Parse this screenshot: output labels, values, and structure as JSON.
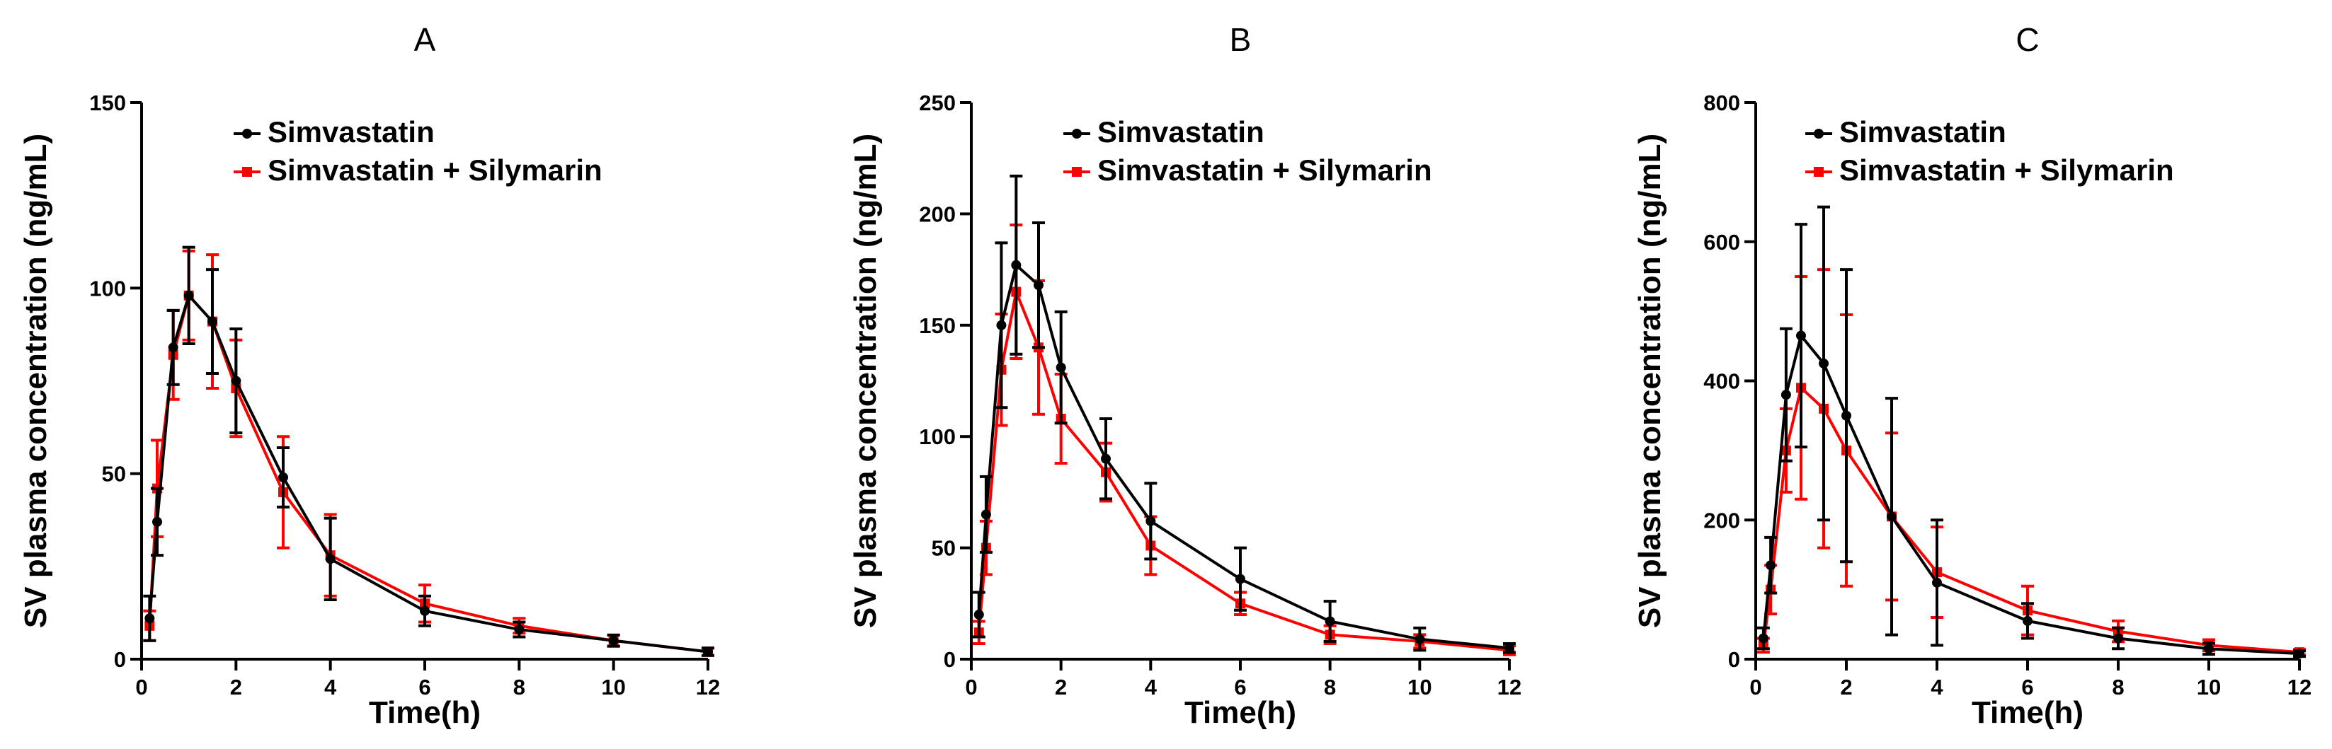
{
  "colors": {
    "simvastatin": "#000000",
    "combination": "#ff0000",
    "axes": "#000000"
  },
  "chart_data": [
    {
      "type": "line",
      "panel": "A",
      "xlabel": "Time(h)",
      "ylabel": "SV plasma concentration (ng/mL)",
      "xlim": [
        0,
        12
      ],
      "ylim": [
        0,
        150
      ],
      "xticks": [
        0,
        2,
        4,
        6,
        8,
        10,
        12
      ],
      "yticks": [
        0,
        50,
        100,
        150
      ],
      "legend_position": "top-center",
      "series": [
        {
          "name": "Simvastatin",
          "color": "#000000",
          "x": [
            0.17,
            0.33,
            0.67,
            1,
            1.5,
            2,
            3,
            4,
            6,
            8,
            10,
            12
          ],
          "values": [
            11,
            37,
            84,
            98,
            91,
            75,
            49,
            27,
            13,
            8,
            5,
            2
          ],
          "errors": [
            6,
            9,
            10,
            13,
            14,
            14,
            8,
            11,
            4,
            2,
            1.5,
            1
          ]
        },
        {
          "name": "Simvastatin + Silymarin",
          "color": "#ff0000",
          "x": [
            0.17,
            0.33,
            0.67,
            1,
            1.5,
            2,
            3,
            4,
            6,
            8,
            10,
            12
          ],
          "values": [
            9,
            46,
            82,
            98,
            91,
            73,
            45,
            28,
            15,
            9,
            5,
            2
          ],
          "errors": [
            4,
            13,
            12,
            12,
            18,
            13,
            15,
            11,
            5,
            2,
            1.5,
            1
          ]
        }
      ]
    },
    {
      "type": "line",
      "panel": "B",
      "xlabel": "Time(h)",
      "ylabel": "SV plasma concentration (ng/mL)",
      "xlim": [
        0,
        12
      ],
      "ylim": [
        0,
        250
      ],
      "xticks": [
        0,
        2,
        4,
        6,
        8,
        10,
        12
      ],
      "yticks": [
        0,
        50,
        100,
        150,
        200,
        250
      ],
      "legend_position": "top-center",
      "series": [
        {
          "name": "Simvastatin",
          "color": "#000000",
          "x": [
            0.17,
            0.33,
            0.67,
            1,
            1.5,
            2,
            3,
            4,
            6,
            8,
            10,
            12
          ],
          "values": [
            20,
            65,
            150,
            177,
            168,
            131,
            90,
            62,
            36,
            17,
            9,
            5
          ],
          "errors": [
            10,
            17,
            37,
            40,
            28,
            25,
            18,
            17,
            14,
            9,
            5,
            2
          ]
        },
        {
          "name": "Simvastatin + Silymarin",
          "color": "#ff0000",
          "x": [
            0.17,
            0.33,
            0.67,
            1,
            1.5,
            2,
            3,
            4,
            6,
            8,
            10,
            12
          ],
          "values": [
            12,
            50,
            130,
            165,
            140,
            108,
            84,
            51,
            25,
            11,
            8,
            4
          ],
          "errors": [
            5,
            12,
            25,
            30,
            30,
            20,
            13,
            13,
            5,
            4,
            3,
            2
          ]
        }
      ]
    },
    {
      "type": "line",
      "panel": "C",
      "xlabel": "Time(h)",
      "ylabel": "SV plasma concentration (ng/mL)",
      "xlim": [
        0,
        12
      ],
      "ylim": [
        0,
        800
      ],
      "xticks": [
        0,
        2,
        4,
        6,
        8,
        10,
        12
      ],
      "yticks": [
        0,
        200,
        400,
        600,
        800
      ],
      "legend_position": "top-center",
      "series": [
        {
          "name": "Simvastatin",
          "color": "#000000",
          "x": [
            0.17,
            0.33,
            0.67,
            1,
            1.5,
            2,
            3,
            4,
            6,
            8,
            10,
            12
          ],
          "values": [
            30,
            135,
            380,
            465,
            425,
            350,
            205,
            110,
            55,
            30,
            15,
            8
          ],
          "errors": [
            15,
            40,
            95,
            160,
            225,
            210,
            170,
            90,
            25,
            15,
            8,
            4
          ]
        },
        {
          "name": "Simvastatin + Silymarin",
          "color": "#ff0000",
          "x": [
            0.17,
            0.33,
            0.67,
            1,
            1.5,
            2,
            3,
            4,
            6,
            8,
            10,
            12
          ],
          "values": [
            20,
            100,
            300,
            390,
            360,
            300,
            205,
            125,
            70,
            40,
            20,
            10
          ],
          "errors": [
            10,
            35,
            60,
            160,
            200,
            195,
            120,
            65,
            35,
            15,
            8,
            4
          ]
        }
      ]
    }
  ]
}
